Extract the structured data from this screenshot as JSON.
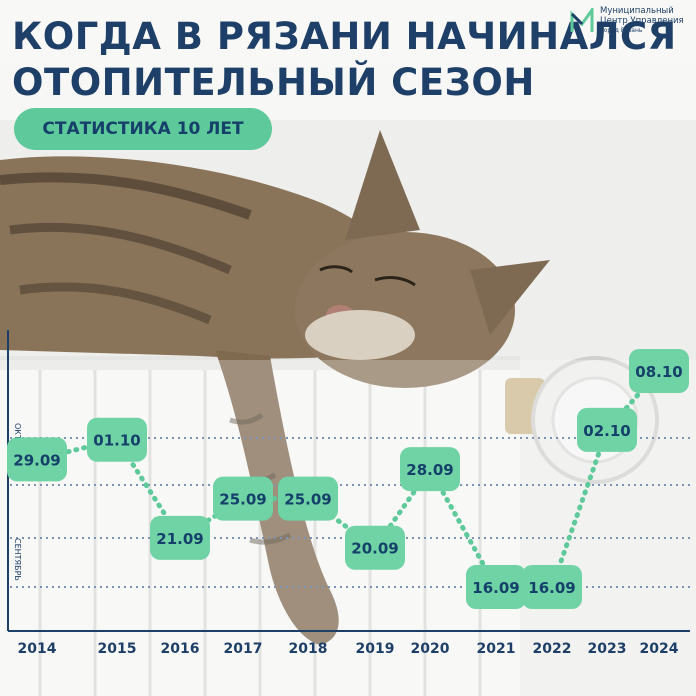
{
  "header": {
    "title_line1": "КОГДА В РЯЗАНИ НАЧИНАЛСЯ",
    "title_line2": "ОТОПИТЕЛЬНЫЙ СЕЗОН",
    "badge": "СТАТИСТИКА 10 ЛЕТ"
  },
  "logo": {
    "line1": "Муниципальный",
    "line2": "Центр Управления",
    "line3": "Город Рязань"
  },
  "colors": {
    "title": "#1e3f67",
    "accent_green": "#5ec99a",
    "marker_fill": "#6fd3a5",
    "dotted_line": "#5ec99a",
    "grid_line": "#7d93b6"
  },
  "chart_data": {
    "type": "line",
    "title": "",
    "categories": [
      "2014",
      "2015",
      "2016",
      "2017",
      "2018",
      "2019",
      "2020",
      "2021",
      "2022",
      "2023",
      "2024"
    ],
    "series": [
      {
        "values": [
          "29.09",
          "01.10",
          "21.09",
          "25.09",
          "25.09",
          "20.09",
          "28.09",
          "16.09",
          "16.09",
          "02.10",
          "08.10"
        ]
      }
    ],
    "month_labels": [
      "ОКТЯБРЬ",
      "СЕНТЯБРЬ"
    ],
    "grid": "dotted horizontal lines",
    "xlabel": "",
    "ylabel": ""
  }
}
